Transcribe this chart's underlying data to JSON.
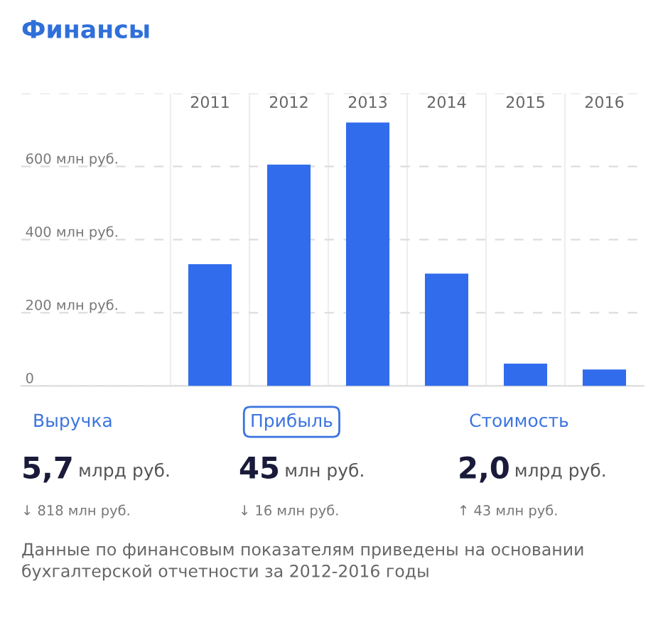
{
  "chart_data": {
    "type": "bar",
    "title": "Финансы",
    "categories": [
      "2011",
      "2012",
      "2013",
      "2014",
      "2015",
      "2016"
    ],
    "values": [
      333,
      605,
      720,
      307,
      61,
      45
    ],
    "color": "#316ced",
    "ylim": [
      0,
      800
    ],
    "yticks": [
      {
        "value": 0,
        "label": "0"
      },
      {
        "value": 200,
        "label": "200 млн руб."
      },
      {
        "value": 400,
        "label": "400 млн руб."
      },
      {
        "value": 600,
        "label": "600 млн руб."
      },
      {
        "value": 800,
        "label": null
      }
    ],
    "grid": true,
    "annotations": [
      "Выручка",
      "Прибыль",
      "Стоимость",
      "5,7 млрд руб.",
      "45 млн руб.",
      "2,0 млрд руб.",
      "↓ 818 млн руб.",
      "↓ 16 млн руб.",
      "↑ 43 млн руб.",
      "Данные по финансовым показателям приведены на основании бухгалтерской отчетности за 2012-2016 годы"
    ]
  }
}
